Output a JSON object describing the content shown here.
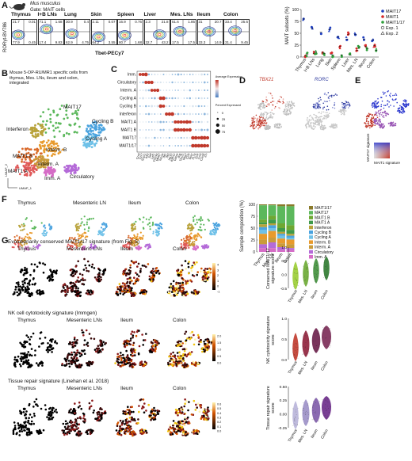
{
  "panels": {
    "A": "A",
    "B": "B",
    "C": "C",
    "D": "D",
    "E": "E",
    "F": "F",
    "G": "G"
  },
  "a": {
    "species": "Mus musculus",
    "gate": "Gate: MAIT cells",
    "tissues": [
      "Thymus",
      "I+B LNs",
      "Lung",
      "Skin",
      "Spleen",
      "Liver",
      "Mes. LNs",
      "Ileum",
      "Colon"
    ],
    "quads": [
      [
        "21.7",
        "0.01",
        "77.9",
        "0.45"
      ],
      [
        "71.1",
        "1.68",
        "17.4",
        "9.83"
      ],
      [
        "30.9",
        "0.4",
        "62.9",
        "4.75"
      ],
      [
        "2.11",
        "0.07",
        "64.2",
        "3.55"
      ],
      [
        "16.9",
        "0.76",
        "80.7",
        "1.68"
      ],
      [
        "2.3",
        "21.8",
        "32.7",
        "43.2"
      ],
      [
        "51.6",
        "1.85",
        "17.5",
        "17.5"
      ],
      [
        "31",
        "20.7",
        "33.3",
        "14.9"
      ],
      [
        "33.4",
        "25.6",
        "31.4",
        "9.45"
      ]
    ],
    "yaxis": "RORγt-BV786",
    "xaxis": "Tbet-PECy7"
  },
  "a_chart": {
    "ylabel": "MAIT subsets (%)",
    "yticks": [
      "0",
      "25",
      "50",
      "75",
      "100"
    ],
    "categories": [
      "Thymus",
      "I+B LNs",
      "Lung",
      "Skin",
      "Spleen",
      "Liver",
      "Mes. LN",
      "Ileum",
      "Colon"
    ],
    "legend": [
      "MAIT17",
      "MAIT1",
      "MAIT1/17",
      "Exp. 1",
      "Exp. 2"
    ]
  },
  "chart_data": {
    "type": "scatter",
    "ylabel": "MAIT subsets (%)",
    "ylim": [
      0,
      100
    ],
    "categories": [
      "Thymus",
      "I+B LNs",
      "Lung",
      "Skin",
      "Spleen",
      "Liver",
      "Mes. LN",
      "Ileum",
      "Colon"
    ],
    "series": [
      {
        "name": "MAIT17",
        "color": "#1f3fbf",
        "values": [
          80,
          60,
          52,
          58,
          42,
          38,
          48,
          38,
          36
        ]
      },
      {
        "name": "MAIT1",
        "color": "#d62828",
        "values": [
          2,
          8,
          10,
          6,
          22,
          48,
          14,
          22,
          24
        ]
      },
      {
        "name": "MAIT1/17",
        "color": "#2e9e3a",
        "values": [
          6,
          10,
          8,
          4,
          4,
          4,
          20,
          18,
          14
        ]
      }
    ]
  },
  "b": {
    "text": "Mouse 5-OP-RU/MR1 specific cells from thymus, Mes. LNs, ileum and colon, integrated",
    "clusters": [
      "MAIT17",
      "Interferon",
      "Cycling B",
      "Cycling A",
      "Interm. B",
      "MAIT1 B",
      "MAIT1 A",
      "Imm. A",
      "Interm. A",
      "Circulatory"
    ],
    "xaxis": "UMAP_1",
    "yaxis": "UMAP_2"
  },
  "c": {
    "rows": [
      "Imm.",
      "Circulatory",
      "Interm. A",
      "Cycling A",
      "Cycling B",
      "Interferon",
      "MAIT1 A",
      "MAIT1 B",
      "MAIT17",
      "MAIT1/17"
    ],
    "cols": [
      "Ccr9",
      "Ccr7",
      "S1pr1",
      "Klf2",
      "Sell",
      "Lef1",
      "Cd24a",
      "Mki67",
      "Top2a",
      "Ifit1",
      "Ifit3",
      "Isg15",
      "Klrb1c",
      "Gzma",
      "Ifng",
      "Tbx21",
      "Nkg7",
      "Ccl5",
      "Rorc",
      "Il17a",
      "Il23r",
      "Ccr6",
      "Cxcr6",
      "Il7r"
    ],
    "legend_expr": "Average Expression",
    "legend_pct": "Percent Expressed",
    "pct_vals": [
      "0",
      "25",
      "50",
      "75"
    ]
  },
  "d": {
    "genes": [
      "TBX21",
      "RORC"
    ]
  },
  "e": {
    "x": "MAIT1 signature",
    "y": "MAIT17 signature"
  },
  "f": {
    "tissues": [
      "Thymus",
      "Mesenteric LN",
      "Ileum",
      "Colon"
    ],
    "ylabel": "Sample composition (%)",
    "yticks": [
      "0",
      "25",
      "50",
      "75",
      "100"
    ],
    "categories": [
      "Thymus",
      "Mes. LN",
      "Ileum",
      "Colon"
    ],
    "legend": [
      "MAIT1/17",
      "MAIT17",
      "MAIT1 B",
      "MAIT1 A",
      "Interferon",
      "Cycling B",
      "Cycling A",
      "Interm. B",
      "Interm. A",
      "Circulatory",
      "Imm. A"
    ]
  },
  "g": {
    "sections": [
      {
        "title": "Evolutionarily conserved MAIT1/17 signature (from Fig. 5)",
        "ylabel": "Conserved MAIT1/17 signature score",
        "scale": [
          "4",
          "3",
          "2",
          "1",
          "0",
          "-1"
        ]
      },
      {
        "title": "NK cell cytotoxicity signature (Immgen)",
        "ylabel": "NK cytotoxicity signature score",
        "scale": [
          "2.0",
          "1.5",
          "1.0",
          "0.5",
          "0.0"
        ]
      },
      {
        "title": "Tissue repair signature (Linehan et al. 2018)",
        "ylabel": "Tissue repair signature score",
        "scale": [
          "0.6",
          "0.5",
          "0.4",
          "0.3",
          "0.2",
          "0.1",
          "0.0"
        ]
      }
    ],
    "tissues": [
      "Thymus",
      "Mesenteric LNs",
      "Ileum",
      "Colon"
    ],
    "violin_cats": [
      "Thymus",
      "Mes. LN",
      "Ileum",
      "Colon"
    ],
    "v1ticks": [
      "1.0",
      "0.5",
      "0.0",
      "-0.5"
    ],
    "v2ticks": [
      "1.0",
      "0.5",
      "0.0"
    ],
    "v3ticks": [
      "0.50",
      "0.25",
      "0.00",
      "-0.25"
    ]
  }
}
